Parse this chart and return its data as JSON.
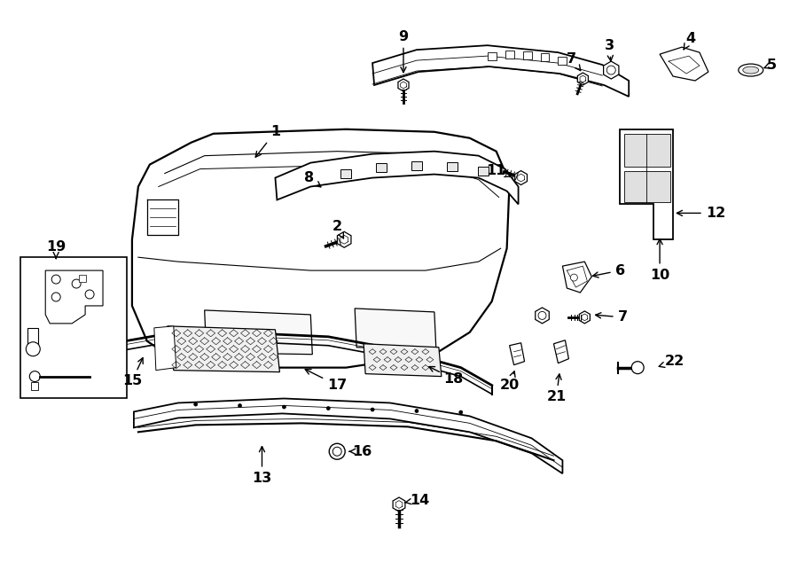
{
  "bg_color": "#ffffff",
  "line_color": "#000000",
  "text_color": "#000000",
  "fig_width": 9.0,
  "fig_height": 6.61,
  "dpi": 100
}
